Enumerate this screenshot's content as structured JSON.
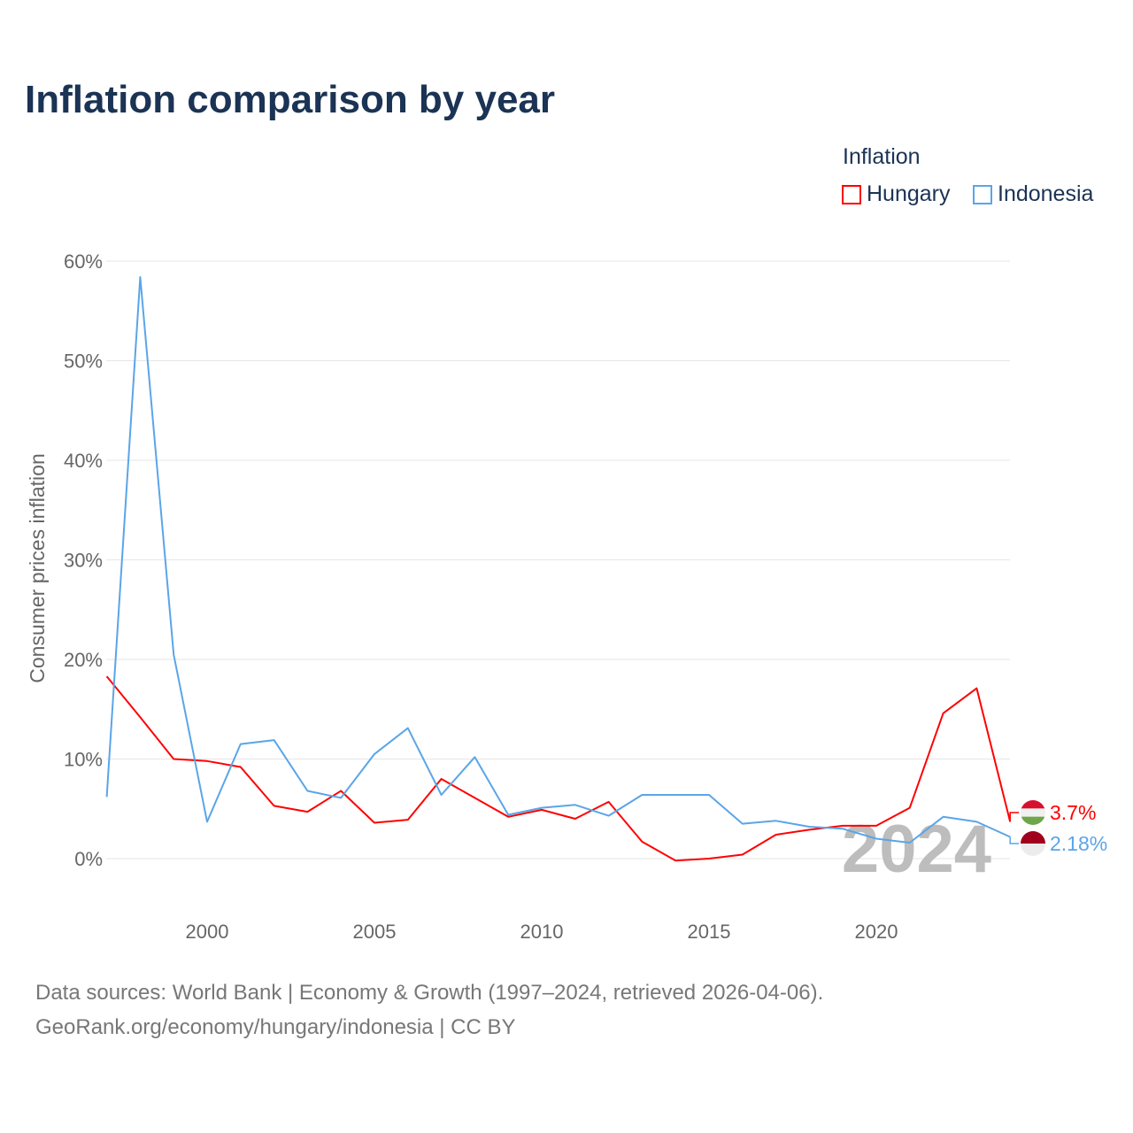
{
  "chart_data": {
    "type": "line",
    "title": "Inflation comparison by year",
    "xlabel": "",
    "ylabel": "Consumer prices inflation",
    "legend_title": "Inflation",
    "legend_position": "top-right",
    "xlim": [
      1997,
      2024
    ],
    "ylim": [
      -5,
      60
    ],
    "x_ticks": [
      "2000",
      "2005",
      "2010",
      "2015",
      "2020"
    ],
    "y_ticks": [
      "0%",
      "10%",
      "20%",
      "30%",
      "40%",
      "50%",
      "60%"
    ],
    "grid": true,
    "year_watermark": "2024",
    "x": [
      1997,
      1998,
      1999,
      2000,
      2001,
      2002,
      2003,
      2004,
      2005,
      2006,
      2007,
      2008,
      2009,
      2010,
      2011,
      2012,
      2013,
      2014,
      2015,
      2016,
      2017,
      2018,
      2019,
      2020,
      2021,
      2022,
      2023,
      2024
    ],
    "series": [
      {
        "name": "Hungary",
        "color": "#ff0000",
        "end_label": "3.7%",
        "values": [
          18.3,
          14.2,
          10.0,
          9.8,
          9.2,
          5.3,
          4.7,
          6.8,
          3.6,
          3.9,
          8.0,
          6.1,
          4.2,
          4.9,
          4.0,
          5.7,
          1.7,
          -0.2,
          0.0,
          0.4,
          2.4,
          2.9,
          3.3,
          3.3,
          5.1,
          14.6,
          17.1,
          3.7
        ]
      },
      {
        "name": "Indonesia",
        "color": "#5aa5e8",
        "end_label": "2.18%",
        "values": [
          6.2,
          58.4,
          20.5,
          3.7,
          11.5,
          11.9,
          6.8,
          6.1,
          10.5,
          13.1,
          6.4,
          10.2,
          4.4,
          5.1,
          5.4,
          4.3,
          6.4,
          6.4,
          6.4,
          3.5,
          3.8,
          3.2,
          3.0,
          2.0,
          1.6,
          4.2,
          3.7,
          2.18
        ]
      }
    ]
  },
  "footer": {
    "line1": "Data sources: World Bank | Economy & Growth (1997–2024, retrieved 2026-04-06).",
    "line2": "GeoRank.org/economy/hungary/indonesia | CC BY"
  }
}
